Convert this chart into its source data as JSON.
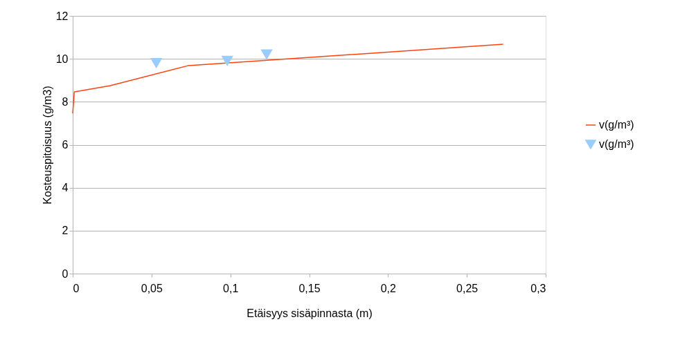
{
  "chart_data": {
    "type": "line",
    "xlabel": "Etäisyys sisäpinnasta (m)",
    "ylabel": "Kosteuspitoisuus (g/m3)",
    "xlim": [
      0,
      0.3
    ],
    "xticks": [
      {
        "value": 0,
        "label": "0"
      },
      {
        "value": 0.05,
        "label": "0,05"
      },
      {
        "value": 0.1,
        "label": "0,1"
      },
      {
        "value": 0.15,
        "label": "0,15"
      },
      {
        "value": 0.2,
        "label": "0,2"
      },
      {
        "value": 0.25,
        "label": "0,25"
      },
      {
        "value": 0.3,
        "label": "0,3"
      }
    ],
    "ylim": [
      0,
      12
    ],
    "yticks": [
      0,
      2,
      4,
      6,
      8,
      10,
      12
    ],
    "grid": "y",
    "legend": "right",
    "series": [
      {
        "name": "v(g/m³)",
        "color": "#ff420e",
        "x": [
          0,
          0.001,
          0.0237,
          0.073,
          0.273
        ],
        "values": [
          7.46,
          8.46,
          8.75,
          9.68,
          10.68
        ]
      },
      {
        "name": "v(g/m³)",
        "type": "scatter",
        "marker": "triangle",
        "color": "#99ccff",
        "x": [
          0.053,
          0.098,
          0.123
        ],
        "values": [
          9.8,
          9.9,
          10.2
        ]
      }
    ]
  }
}
